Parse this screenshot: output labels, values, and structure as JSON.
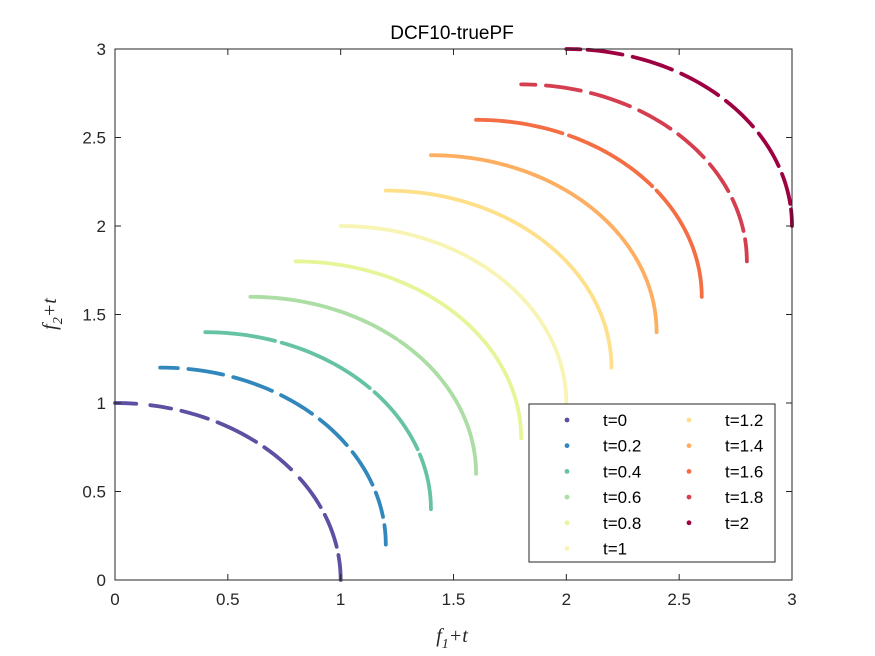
{
  "chart_data": {
    "type": "scatter",
    "title": "DCF10-truePF",
    "xlabel": {
      "base": "f",
      "sub": "1",
      "suffix": "+t"
    },
    "ylabel": {
      "base": "f",
      "sub": "2",
      "suffix": "+t"
    },
    "xlim": [
      0,
      3
    ],
    "ylim": [
      0,
      3
    ],
    "xticks": [
      "0",
      "0.5",
      "1",
      "1.5",
      "2",
      "2.5",
      "3"
    ],
    "yticks": [
      "0",
      "0.5",
      "1",
      "1.5",
      "2",
      "2.5",
      "3"
    ],
    "grid": false,
    "legend_position": "bottom-right",
    "legend_columns": 2,
    "series": [
      {
        "name": "t=0",
        "t": 0.0,
        "color": "#5e4fa2",
        "gaps": [
          [
            0.06,
            0.1
          ],
          [
            0.16,
            0.19
          ],
          [
            0.27,
            0.3
          ],
          [
            0.43,
            0.46
          ],
          [
            0.57,
            0.61
          ],
          [
            0.73,
            0.76
          ],
          [
            0.88,
            0.91
          ]
        ]
      },
      {
        "name": "t=0.2",
        "t": 0.2,
        "color": "#3288bd",
        "gaps": [
          [
            0.05,
            0.08
          ],
          [
            0.18,
            0.21
          ],
          [
            0.33,
            0.36
          ],
          [
            0.47,
            0.5
          ],
          [
            0.62,
            0.65
          ],
          [
            0.78,
            0.81
          ],
          [
            0.9,
            0.93
          ]
        ]
      },
      {
        "name": "t=0.4",
        "t": 0.4,
        "color": "#66c2a5",
        "gaps": [
          [
            0.2,
            0.22
          ],
          [
            0.52,
            0.54
          ],
          [
            0.78,
            0.8
          ]
        ]
      },
      {
        "name": "t=0.6",
        "t": 0.6,
        "color": "#abdda4",
        "gaps": [
          [
            0.45,
            0.46
          ]
        ]
      },
      {
        "name": "t=0.8",
        "t": 0.8,
        "color": "#e6f598",
        "gaps": []
      },
      {
        "name": "t=1",
        "t": 1.0,
        "color": "#f7f4b4",
        "gaps": []
      },
      {
        "name": "t=1.2",
        "t": 1.2,
        "color": "#fee08b",
        "gaps": [
          [
            0.48,
            0.49
          ]
        ]
      },
      {
        "name": "t=1.4",
        "t": 1.4,
        "color": "#fdae61",
        "gaps": [
          [
            0.63,
            0.64
          ]
        ]
      },
      {
        "name": "t=1.6",
        "t": 1.6,
        "color": "#f46d43",
        "gaps": [
          [
            0.25,
            0.27
          ],
          [
            0.57,
            0.59
          ]
        ]
      },
      {
        "name": "t=1.8",
        "t": 1.8,
        "color": "#d53e4f",
        "gaps": [
          [
            0.04,
            0.07
          ],
          [
            0.17,
            0.2
          ],
          [
            0.32,
            0.35
          ],
          [
            0.46,
            0.49
          ],
          [
            0.6,
            0.63
          ],
          [
            0.74,
            0.77
          ],
          [
            0.89,
            0.92
          ]
        ]
      },
      {
        "name": "t=2",
        "t": 2.0,
        "color": "#9e0142",
        "gaps": [
          [
            0.04,
            0.06
          ],
          [
            0.16,
            0.19
          ],
          [
            0.31,
            0.34
          ],
          [
            0.47,
            0.5
          ],
          [
            0.62,
            0.65
          ],
          [
            0.78,
            0.81
          ],
          [
            0.92,
            0.94
          ]
        ]
      }
    ]
  }
}
